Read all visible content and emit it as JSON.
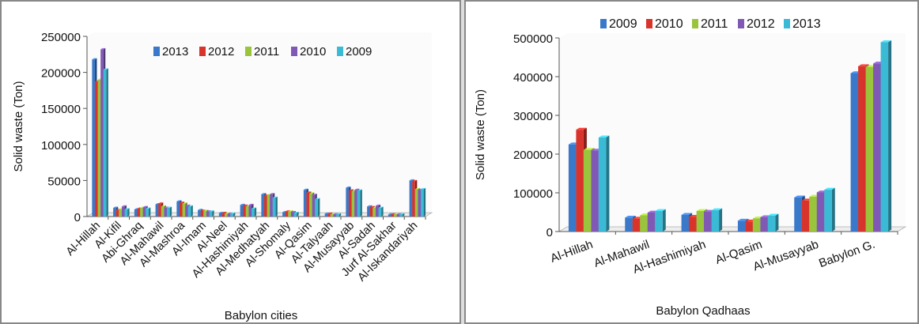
{
  "chart_data": [
    {
      "type": "bar",
      "title": "",
      "xlabel": "Babylon cities",
      "ylabel": "Solid waste (Ton)",
      "ylim": [
        0,
        250000
      ],
      "yticks": [
        "0",
        "50000",
        "100000",
        "150000",
        "200000",
        "250000"
      ],
      "legend_placement": "top-right",
      "categories": [
        "Al-Hillah",
        "Al-Kifil",
        "Abi-Ghraq",
        "Al-Mahawil",
        "Al-Mashroa",
        "Al-Imam",
        "Al-Neel",
        "Al-Hashimiyah",
        "Al-Medhatyah",
        "Al-Shomaly",
        "Al-Qasim",
        "Al-Talyaah",
        "Al-Musayyab",
        "Al-Sadah",
        "Jurf Al-Sakhar",
        "Al-Iskandariyah"
      ],
      "series": [
        {
          "name": "2013",
          "color": "#3a78c9",
          "values": [
            218000,
            12000,
            10000,
            17000,
            21000,
            9000,
            5000,
            16000,
            31000,
            6000,
            37000,
            4000,
            40000,
            14000,
            3000,
            50000
          ]
        },
        {
          "name": "2012",
          "color": "#d9342b",
          "values": [
            187000,
            9000,
            11000,
            18000,
            19000,
            8000,
            5000,
            15000,
            29000,
            7000,
            33000,
            4000,
            36000,
            13000,
            3000,
            49000
          ]
        },
        {
          "name": "2011",
          "color": "#9ac43c",
          "values": [
            190000,
            10000,
            12000,
            14000,
            18000,
            8000,
            4000,
            14000,
            30000,
            7000,
            32000,
            3000,
            35000,
            12000,
            3000,
            38000
          ]
        },
        {
          "name": "2010",
          "color": "#8059b5",
          "values": [
            232000,
            14000,
            13000,
            12000,
            15000,
            7000,
            4000,
            16000,
            31000,
            6000,
            30000,
            3000,
            37000,
            15000,
            3000,
            37000
          ]
        },
        {
          "name": "2009",
          "color": "#3bbad6",
          "values": [
            204000,
            10000,
            11000,
            12000,
            14000,
            7000,
            4000,
            11000,
            26000,
            5000,
            24000,
            3000,
            36000,
            12000,
            3000,
            38000
          ]
        }
      ]
    },
    {
      "type": "bar",
      "title": "",
      "xlabel": "Babylon Qadhaas",
      "ylabel": "Solid waste (Ton)",
      "ylim": [
        0,
        500000
      ],
      "yticks": [
        "0",
        "100000",
        "200000",
        "300000",
        "400000",
        "500000"
      ],
      "legend_placement": "top",
      "categories": [
        "Al-Hillah",
        "Al-Mahawil",
        "Al-Hashimiyah",
        "Al-Qasim",
        "Al-Musayyab",
        "Babylon G."
      ],
      "series": [
        {
          "name": "2009",
          "color": "#3a78c9",
          "values": [
            225000,
            36000,
            43000,
            28000,
            88000,
            409000
          ]
        },
        {
          "name": "2010",
          "color": "#d9342b",
          "values": [
            263000,
            33000,
            38000,
            26000,
            80000,
            427000
          ]
        },
        {
          "name": "2011",
          "color": "#9ac43c",
          "values": [
            211000,
            42000,
            53000,
            34000,
            90000,
            425000
          ]
        },
        {
          "name": "2012",
          "color": "#8059b5",
          "values": [
            209000,
            49000,
            51000,
            37000,
            101000,
            434000
          ]
        },
        {
          "name": "2013",
          "color": "#3bbad6",
          "values": [
            243000,
            53000,
            55000,
            41000,
            108000,
            489000
          ]
        }
      ]
    }
  ]
}
